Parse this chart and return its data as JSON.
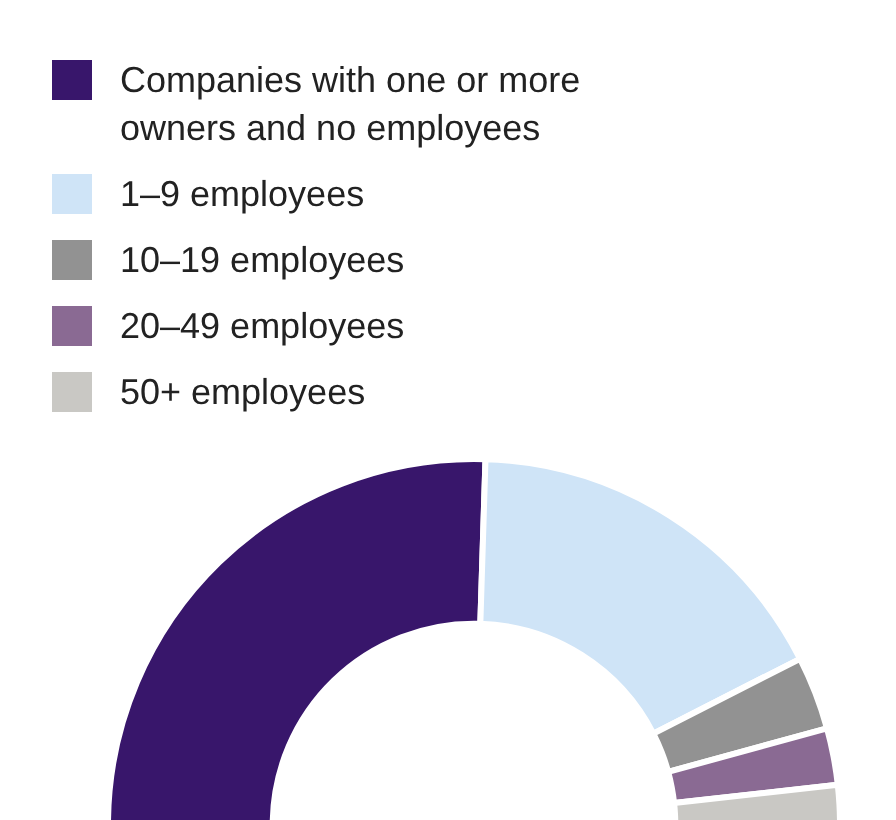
{
  "chart_data": {
    "type": "donut",
    "categories": [
      "Companies with one or more owners and no employees",
      "1–9 employees",
      "10–19 employees",
      "20–49 employees",
      "50+ employees"
    ],
    "values": [
      51,
      34,
      6.5,
      5,
      3.5
    ],
    "colors": [
      "#38166b",
      "#cfe4f7",
      "#929292",
      "#8a6a93",
      "#c9c8c4"
    ],
    "legend": "top left"
  }
}
